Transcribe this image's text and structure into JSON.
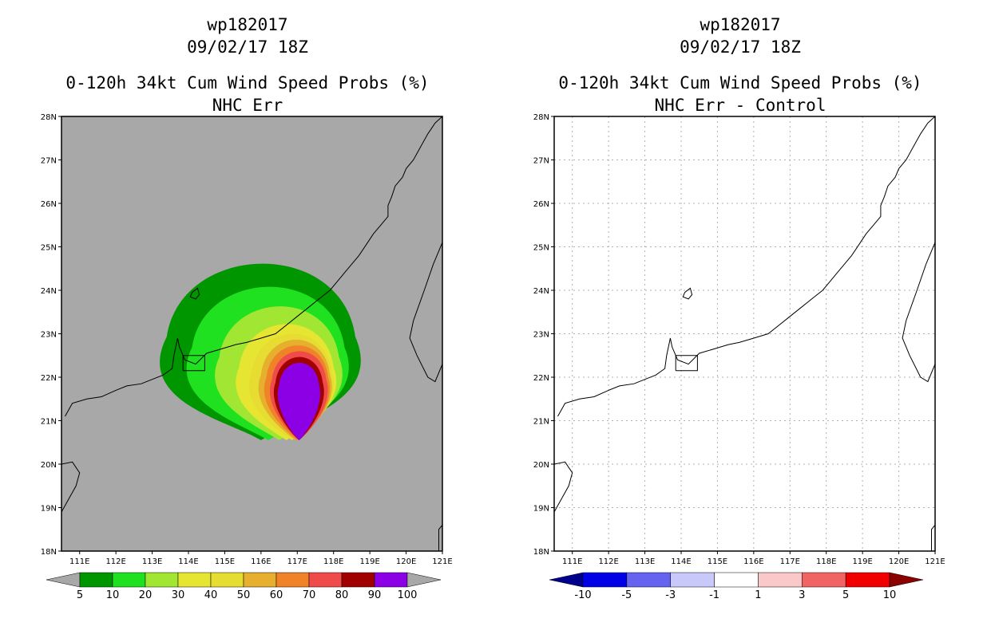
{
  "colors": {
    "land_fill_left": "#a8a8a8",
    "border": "#000000",
    "grid": "#b0b0b0"
  },
  "chart_data": [
    {
      "type": "heatmap",
      "id": "left",
      "title_lines": [
        "wp182017",
        "09/02/17 18Z",
        "0-120h 34kt Cum Wind Speed Probs (%)",
        "NHC Err"
      ],
      "lon_range": [
        110.5,
        121
      ],
      "lat_range": [
        18,
        28
      ],
      "x_ticks": [
        111,
        112,
        113,
        114,
        115,
        116,
        117,
        118,
        119,
        120,
        121
      ],
      "x_tick_labels": [
        "111E",
        "112E",
        "113E",
        "114E",
        "115E",
        "116E",
        "117E",
        "118E",
        "119E",
        "120E",
        "121E"
      ],
      "y_ticks": [
        18,
        19,
        20,
        21,
        22,
        23,
        24,
        25,
        26,
        27,
        28
      ],
      "y_tick_labels": [
        "18N",
        "19N",
        "20N",
        "21N",
        "22N",
        "23N",
        "24N",
        "25N",
        "26N",
        "27N",
        "28N"
      ],
      "grid": false,
      "colorbar": {
        "colors": [
          "#009600",
          "#1fe11f",
          "#a0e632",
          "#e6e632",
          "#e6dc32",
          "#e6af2d",
          "#f08228",
          "#f04b4b",
          "#a00000",
          "#8c00e6"
        ],
        "labels": [
          "5",
          "10",
          "20",
          "30",
          "40",
          "50",
          "60",
          "70",
          "80",
          "90",
          "100"
        ],
        "under_color": "#a8a8a8",
        "over_color": "#a8a8a8"
      },
      "contours": [
        {
          "level": 5,
          "color": "#009600",
          "center": [
            116.0,
            22.7
          ],
          "rx": 2.6,
          "ry": 2.3
        },
        {
          "level": 10,
          "color": "#1fe11f",
          "center": [
            116.2,
            22.5
          ],
          "rx": 2.1,
          "ry": 1.9
        },
        {
          "level": 20,
          "color": "#a0e632",
          "center": [
            116.5,
            22.3
          ],
          "rx": 1.65,
          "ry": 1.6
        },
        {
          "level": 30,
          "color": "#e6e632",
          "center": [
            116.7,
            22.1
          ],
          "rx": 1.3,
          "ry": 1.35
        },
        {
          "level": 40,
          "color": "#e6dc32",
          "center": [
            116.85,
            22.0
          ],
          "rx": 1.1,
          "ry": 1.2
        },
        {
          "level": 50,
          "color": "#e6af2d",
          "center": [
            116.95,
            21.95
          ],
          "rx": 0.95,
          "ry": 1.1
        },
        {
          "level": 60,
          "color": "#f08228",
          "center": [
            117.0,
            21.9
          ],
          "rx": 0.85,
          "ry": 1.0
        },
        {
          "level": 70,
          "color": "#f04b4b",
          "center": [
            117.05,
            21.85
          ],
          "rx": 0.75,
          "ry": 0.9
        },
        {
          "level": 80,
          "color": "#a00000",
          "center": [
            117.05,
            21.8
          ],
          "rx": 0.65,
          "ry": 0.8
        },
        {
          "level": 90,
          "color": "#8c00e6",
          "center": [
            117.05,
            21.75
          ],
          "rx": 0.55,
          "ry": 0.7
        }
      ]
    },
    {
      "type": "heatmap",
      "id": "right",
      "title_lines": [
        "wp182017",
        "09/02/17 18Z",
        "0-120h 34kt Cum Wind Speed Probs (%)",
        "NHC Err - Control"
      ],
      "lon_range": [
        110.5,
        121
      ],
      "lat_range": [
        18,
        28
      ],
      "x_ticks": [
        111,
        112,
        113,
        114,
        115,
        116,
        117,
        118,
        119,
        120,
        121
      ],
      "x_tick_labels": [
        "111E",
        "112E",
        "113E",
        "114E",
        "115E",
        "116E",
        "117E",
        "118E",
        "119E",
        "120E",
        "121E"
      ],
      "y_ticks": [
        18,
        19,
        20,
        21,
        22,
        23,
        24,
        25,
        26,
        27,
        28
      ],
      "y_tick_labels": [
        "18N",
        "19N",
        "20N",
        "21N",
        "22N",
        "23N",
        "24N",
        "25N",
        "26N",
        "27N",
        "28N"
      ],
      "grid": true,
      "colorbar": {
        "colors": [
          "#0000e6",
          "#6464f0",
          "#c8c8fa",
          "#ffffff",
          "#fac8c8",
          "#f06464",
          "#f00000"
        ],
        "labels": [
          "-10",
          "-5",
          "-3",
          "-1",
          "1",
          "3",
          "5",
          "10"
        ],
        "under_color": "#00008c",
        "over_color": "#8c0000"
      },
      "contours": []
    }
  ],
  "coastline": {
    "mainland": [
      [
        110.6,
        21.1
      ],
      [
        110.8,
        21.4
      ],
      [
        111.2,
        21.5
      ],
      [
        111.6,
        21.55
      ],
      [
        112.0,
        21.7
      ],
      [
        112.3,
        21.8
      ],
      [
        112.7,
        21.85
      ],
      [
        113.0,
        21.95
      ],
      [
        113.3,
        22.05
      ],
      [
        113.55,
        22.2
      ],
      [
        113.6,
        22.5
      ],
      [
        113.7,
        22.9
      ],
      [
        113.75,
        22.7
      ],
      [
        113.9,
        22.4
      ],
      [
        114.2,
        22.3
      ],
      [
        114.5,
        22.55
      ],
      [
        114.9,
        22.65
      ],
      [
        115.3,
        22.75
      ],
      [
        115.6,
        22.8
      ],
      [
        116.0,
        22.9
      ],
      [
        116.4,
        23.0
      ],
      [
        116.7,
        23.2
      ],
      [
        117.0,
        23.4
      ],
      [
        117.3,
        23.6
      ],
      [
        117.6,
        23.8
      ],
      [
        117.9,
        24.0
      ],
      [
        118.1,
        24.2
      ],
      [
        118.3,
        24.4
      ],
      [
        118.5,
        24.6
      ],
      [
        118.7,
        24.8
      ],
      [
        118.9,
        25.05
      ],
      [
        119.1,
        25.3
      ],
      [
        119.3,
        25.5
      ],
      [
        119.5,
        25.7
      ],
      [
        119.5,
        25.95
      ],
      [
        119.6,
        26.15
      ],
      [
        119.7,
        26.4
      ],
      [
        119.9,
        26.6
      ],
      [
        120.0,
        26.8
      ],
      [
        120.2,
        27.0
      ],
      [
        120.4,
        27.3
      ],
      [
        120.6,
        27.6
      ],
      [
        120.8,
        27.85
      ],
      [
        121.0,
        28.0
      ]
    ],
    "taiwan": [
      [
        121.0,
        25.1
      ],
      [
        120.75,
        24.6
      ],
      [
        120.5,
        24.0
      ],
      [
        120.2,
        23.3
      ],
      [
        120.1,
        22.9
      ],
      [
        120.3,
        22.5
      ],
      [
        120.6,
        22.0
      ],
      [
        120.8,
        21.9
      ],
      [
        121.0,
        22.3
      ]
    ],
    "hainan": [
      [
        110.5,
        20.0
      ],
      [
        110.8,
        20.05
      ],
      [
        111.0,
        19.8
      ],
      [
        110.9,
        19.5
      ],
      [
        110.7,
        19.2
      ],
      [
        110.5,
        18.9
      ]
    ],
    "south_corner": [
      [
        120.9,
        18.0
      ],
      [
        120.9,
        18.5
      ],
      [
        121.0,
        18.6
      ]
    ],
    "island_1": [
      [
        114.1,
        23.95
      ],
      [
        114.25,
        24.05
      ],
      [
        114.3,
        23.9
      ],
      [
        114.2,
        23.8
      ],
      [
        114.05,
        23.85
      ],
      [
        114.1,
        23.95
      ]
    ],
    "hk_box": [
      [
        113.85,
        22.15
      ],
      [
        114.45,
        22.15
      ],
      [
        114.45,
        22.5
      ],
      [
        113.85,
        22.5
      ],
      [
        113.85,
        22.15
      ]
    ]
  }
}
